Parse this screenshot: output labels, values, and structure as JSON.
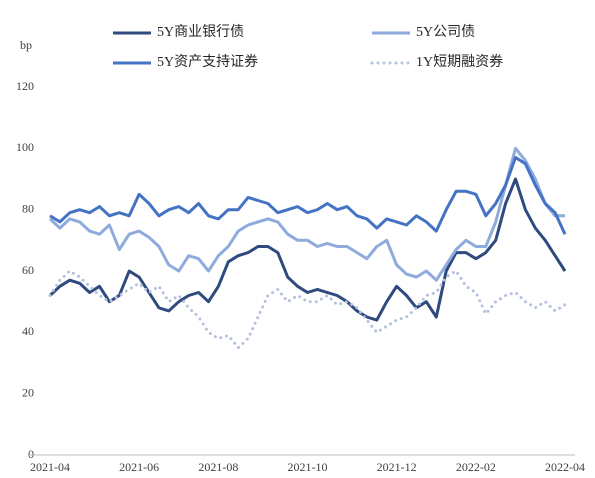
{
  "chart_data": {
    "type": "line",
    "y_label": "bp",
    "categories": [
      "2021-04",
      null,
      null,
      null,
      null,
      null,
      null,
      null,
      null,
      "2021-06",
      null,
      null,
      null,
      null,
      null,
      null,
      null,
      "2021-08",
      null,
      null,
      null,
      null,
      null,
      null,
      null,
      null,
      "2021-10",
      null,
      null,
      null,
      null,
      null,
      null,
      null,
      null,
      "2021-12",
      null,
      null,
      null,
      null,
      null,
      null,
      null,
      "2022-02",
      null,
      null,
      null,
      null,
      null,
      null,
      null,
      null,
      "2022-04"
    ],
    "ylim": [
      0,
      120
    ],
    "yticks": [
      0,
      20,
      40,
      60,
      80,
      100,
      120
    ],
    "grid": false,
    "series": [
      {
        "name": "5Y商业银行债",
        "color": "#2f4a7e",
        "style": "solid",
        "values": [
          52,
          55,
          57,
          56,
          53,
          55,
          50,
          52,
          60,
          58,
          53,
          48,
          47,
          50,
          52,
          53,
          50,
          55,
          63,
          65,
          66,
          68,
          68,
          66,
          58,
          55,
          53,
          54,
          53,
          52,
          50,
          47,
          45,
          44,
          50,
          55,
          52,
          48,
          50,
          45,
          60,
          66,
          66,
          64,
          66,
          70,
          82,
          90,
          80,
          74,
          70,
          65,
          60
        ]
      },
      {
        "name": "5Y公司债",
        "color": "#8faadc",
        "style": "solid",
        "values": [
          77,
          74,
          77,
          76,
          73,
          72,
          75,
          67,
          72,
          73,
          71,
          68,
          62,
          60,
          65,
          64,
          60,
          65,
          68,
          73,
          75,
          76,
          77,
          76,
          72,
          70,
          70,
          68,
          69,
          68,
          68,
          66,
          64,
          68,
          70,
          62,
          59,
          58,
          60,
          57,
          62,
          67,
          70,
          68,
          68,
          76,
          88,
          100,
          96,
          90,
          82,
          78,
          78
        ]
      },
      {
        "name": "5Y资产支持证券",
        "color": "#4472c4",
        "style": "solid",
        "values": [
          78,
          76,
          79,
          80,
          79,
          81,
          78,
          79,
          78,
          85,
          82,
          78,
          80,
          81,
          79,
          82,
          78,
          77,
          80,
          80,
          84,
          83,
          82,
          79,
          80,
          81,
          79,
          80,
          82,
          80,
          81,
          78,
          77,
          74,
          77,
          76,
          75,
          78,
          76,
          73,
          80,
          86,
          86,
          85,
          78,
          82,
          88,
          97,
          95,
          88,
          82,
          79,
          72
        ]
      },
      {
        "name": "1Y短期融资券",
        "color": "#b4c0e0",
        "style": "dotted",
        "values": [
          52,
          57,
          60,
          58,
          55,
          52,
          50,
          52,
          54,
          56,
          53,
          55,
          50,
          52,
          48,
          45,
          40,
          38,
          39,
          35,
          38,
          45,
          52,
          54,
          50,
          52,
          50,
          50,
          52,
          49,
          50,
          48,
          44,
          40,
          42,
          44,
          45,
          48,
          52,
          53,
          58,
          60,
          55,
          53,
          46,
          50,
          52,
          53,
          50,
          48,
          50,
          47,
          49
        ]
      }
    ]
  }
}
